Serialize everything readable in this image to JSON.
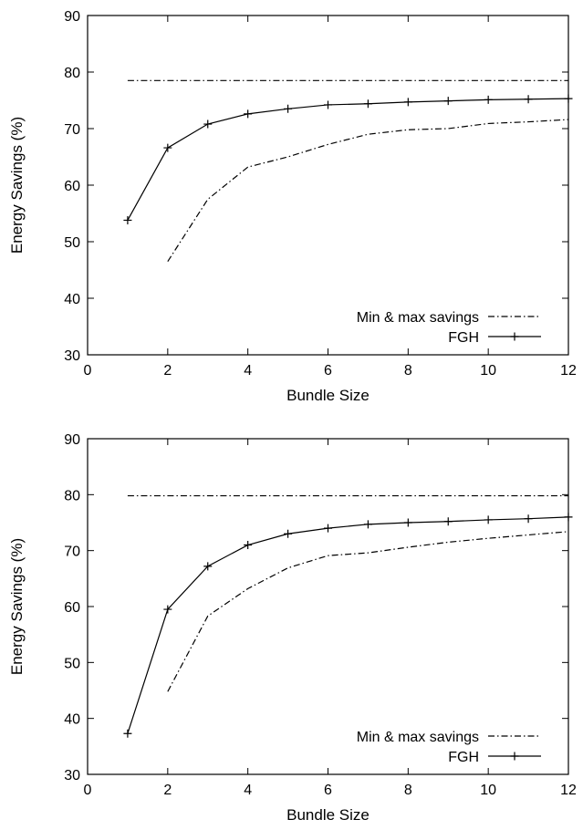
{
  "chart_data": [
    {
      "type": "line",
      "xlabel": "Bundle Size",
      "ylabel": "Energy Savings (%)",
      "xlim": [
        0,
        12
      ],
      "ylim": [
        30,
        90
      ],
      "xticks": [
        "0",
        "2",
        "4",
        "6",
        "8",
        "10",
        "12"
      ],
      "yticks": [
        "30",
        "40",
        "50",
        "60",
        "70",
        "80",
        "90"
      ],
      "grid": false,
      "legend_position": "bottom-right",
      "series": [
        {
          "name": "Min & max savings",
          "style": "dash-dot",
          "color": "#000000",
          "markers": false,
          "segments": [
            {
              "x": [
                1,
                12
              ],
              "y": [
                78.5,
                78.5
              ]
            },
            {
              "x": [
                2,
                3,
                4,
                5,
                6,
                7,
                8,
                9,
                10,
                11,
                12
              ],
              "y": [
                46.5,
                57.5,
                63.2,
                65.0,
                67.2,
                69.0,
                69.8,
                70.0,
                70.9,
                71.2,
                71.6
              ]
            }
          ]
        },
        {
          "name": "FGH",
          "style": "solid",
          "color": "#000000",
          "markers": true,
          "segments": [
            {
              "x": [
                1,
                2,
                3,
                4,
                5,
                6,
                7,
                8,
                9,
                10,
                11,
                12
              ],
              "y": [
                53.8,
                66.6,
                70.8,
                72.6,
                73.5,
                74.2,
                74.4,
                74.7,
                74.9,
                75.1,
                75.2,
                75.3
              ]
            }
          ]
        }
      ]
    },
    {
      "type": "line",
      "xlabel": "Bundle Size",
      "ylabel": "Energy Savings (%)",
      "xlim": [
        0,
        12
      ],
      "ylim": [
        30,
        90
      ],
      "xticks": [
        "0",
        "2",
        "4",
        "6",
        "8",
        "10",
        "12"
      ],
      "yticks": [
        "30",
        "40",
        "50",
        "60",
        "70",
        "80",
        "90"
      ],
      "grid": false,
      "legend_position": "bottom-right",
      "series": [
        {
          "name": "Min & max savings",
          "style": "dash-dot",
          "color": "#000000",
          "markers": false,
          "segments": [
            {
              "x": [
                1,
                12
              ],
              "y": [
                79.8,
                79.8
              ]
            },
            {
              "x": [
                2,
                3,
                4,
                5,
                6,
                7,
                8,
                9,
                10,
                11,
                12
              ],
              "y": [
                44.8,
                58.3,
                63.2,
                66.9,
                69.1,
                69.6,
                70.6,
                71.5,
                72.2,
                72.8,
                73.4
              ]
            }
          ]
        },
        {
          "name": "FGH",
          "style": "solid",
          "color": "#000000",
          "markers": true,
          "segments": [
            {
              "x": [
                1,
                2,
                3,
                4,
                5,
                6,
                7,
                8,
                9,
                10,
                11,
                12
              ],
              "y": [
                37.3,
                59.5,
                67.2,
                71.0,
                73.0,
                74.0,
                74.7,
                75.0,
                75.2,
                75.5,
                75.7,
                76.0
              ]
            }
          ]
        }
      ]
    }
  ]
}
